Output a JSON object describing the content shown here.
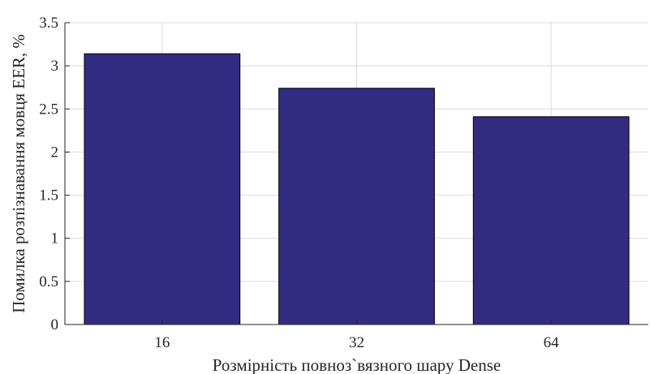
{
  "chart_data": {
    "type": "bar",
    "title": "",
    "xlabel": "Розмірність повноз`вязного шару Dense",
    "ylabel": "Помилка розпізнавання мовця EER, %",
    "categories": [
      "16",
      "32",
      "64"
    ],
    "values": [
      3.14,
      2.74,
      2.41
    ],
    "ylim": [
      0,
      3.5
    ],
    "yticks": [
      "0",
      "0.5",
      "1",
      "1.5",
      "2",
      "2.5",
      "3",
      "3.5"
    ],
    "bar_color": "#332a82",
    "grid": true,
    "legend": "none"
  }
}
